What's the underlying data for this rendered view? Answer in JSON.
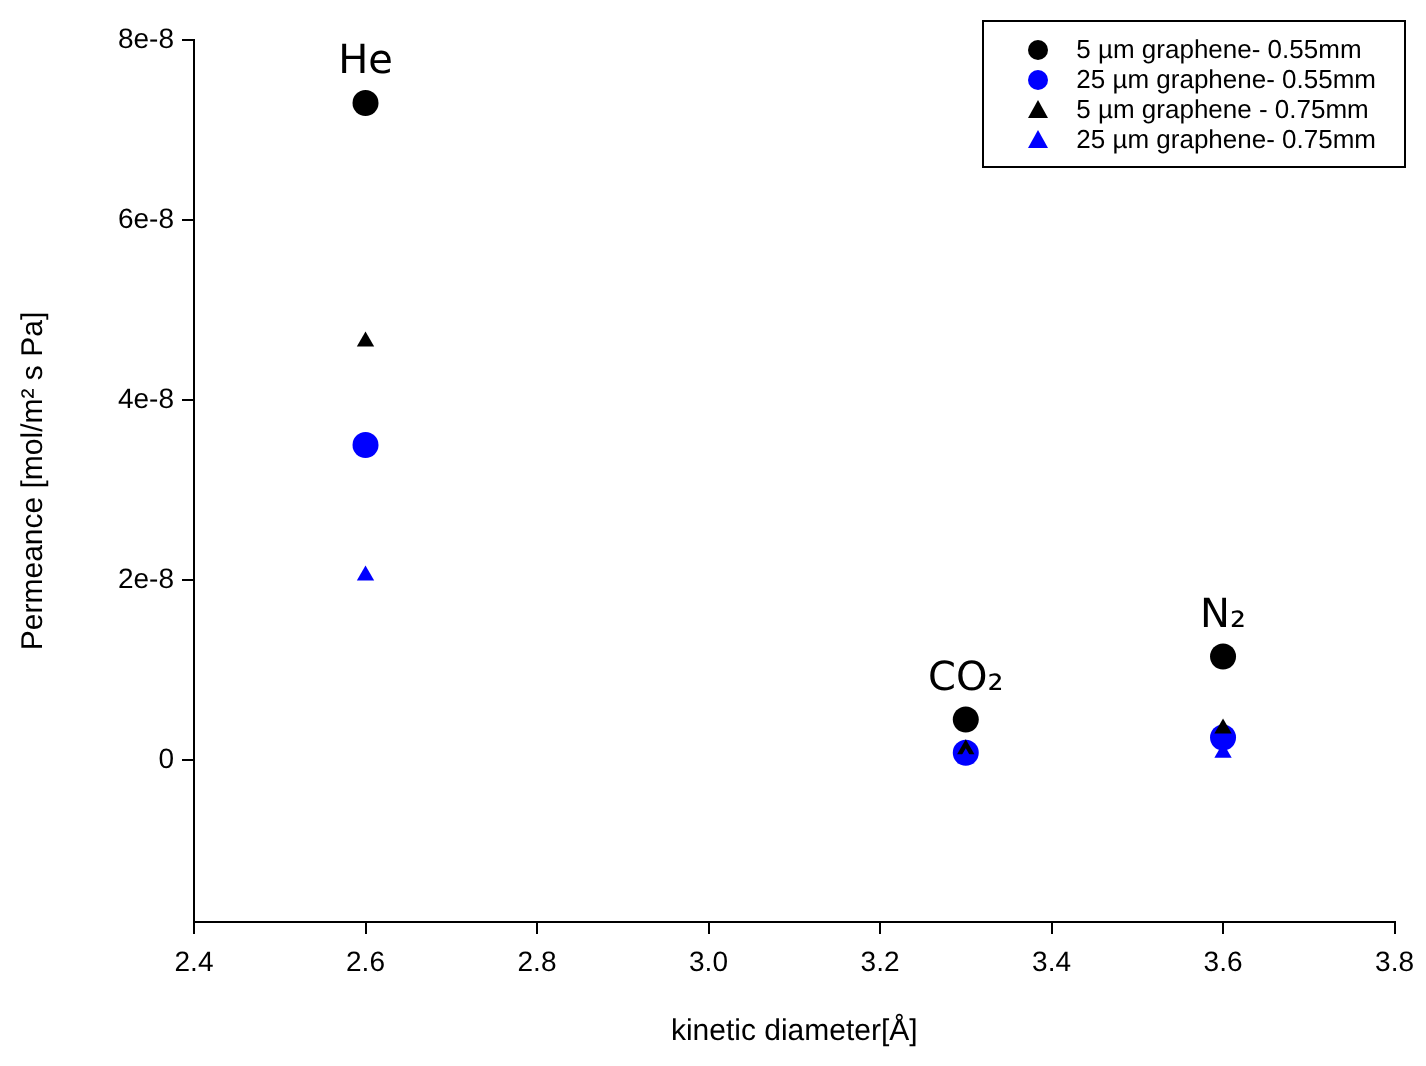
{
  "chart_data": {
    "type": "scatter",
    "xlabel": "kinetic diameter[Å]",
    "ylabel": "Permeance [mol/m² s Pa]",
    "xlim": [
      2.4,
      3.8
    ],
    "xticks": [
      {
        "value": 2.4,
        "label": "2.4"
      },
      {
        "value": 2.6,
        "label": "2.6"
      },
      {
        "value": 2.8,
        "label": "2.8"
      },
      {
        "value": 3.0,
        "label": "3.0"
      },
      {
        "value": 3.2,
        "label": "3.2"
      },
      {
        "value": 3.4,
        "label": "3.4"
      },
      {
        "value": 3.6,
        "label": "3.6"
      },
      {
        "value": 3.8,
        "label": "3.8"
      }
    ],
    "ylim": [
      -1.8e-08,
      8e-08
    ],
    "yticks": [
      {
        "value": 0,
        "label": "0"
      },
      {
        "value": 2e-08,
        "label": "2e-8"
      },
      {
        "value": 4e-08,
        "label": "4e-8"
      },
      {
        "value": 6e-08,
        "label": "6e-8"
      },
      {
        "value": 8e-08,
        "label": "8e-8"
      }
    ],
    "x": [
      2.6,
      3.3,
      3.6
    ],
    "series": [
      {
        "name": "5 µm graphene- 0.55mm",
        "color": "#000000",
        "marker": "circle",
        "values": [
          7.3e-08,
          4.5e-09,
          1.15e-08
        ]
      },
      {
        "name": "25 µm graphene- 0.55mm",
        "color": "#0000ff",
        "marker": "circle",
        "values": [
          3.5e-08,
          8e-10,
          2.5e-09
        ]
      },
      {
        "name": "5 µm graphene - 0.75mm",
        "color": "#000000",
        "marker": "triangle",
        "values": [
          4.65e-08,
          1.2e-09,
          3.5e-09
        ]
      },
      {
        "name": "25 µm graphene- 0.75mm",
        "color": "#0000ff",
        "marker": "triangle",
        "values": [
          2.05e-08,
          2e-10,
          8e-10
        ]
      }
    ],
    "annotations": [
      "He",
      "CO₂",
      "N₂"
    ],
    "legend": "top right",
    "grid": false
  }
}
